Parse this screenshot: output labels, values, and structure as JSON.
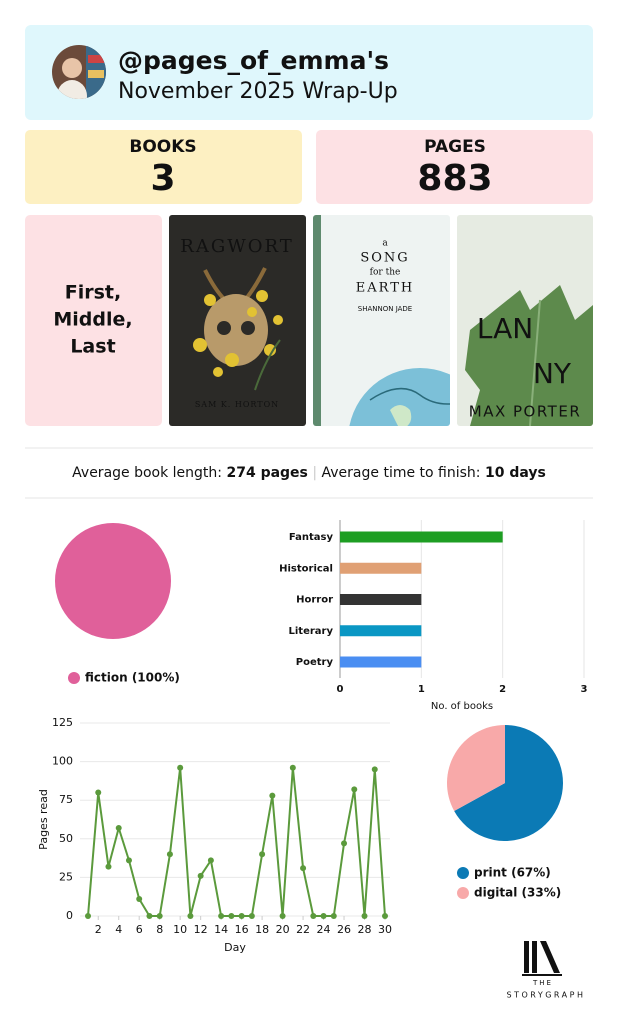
{
  "header": {
    "username": "@pages_of_emma's",
    "subtitle": "November 2025 Wrap-Up"
  },
  "stats": {
    "books_label": "BOOKS",
    "books": 3,
    "pages_label": "PAGES",
    "pages": 883
  },
  "highlight": [
    "First,",
    "Middle,",
    "Last"
  ],
  "books": [
    {
      "title": [
        "RAGWORT"
      ],
      "author": "SAM K. HORTON"
    },
    {
      "title": [
        "a",
        "SONG",
        "for the",
        "EARTH"
      ],
      "author": "SHANNON JADE"
    },
    {
      "title": [
        "LAN",
        "NY"
      ],
      "author": "MAX PORTER"
    }
  ],
  "averages": {
    "length_label": "Average book length:",
    "length": "274 pages",
    "time_label": "Average time to finish:",
    "time": "10 days"
  },
  "chart_data": [
    {
      "type": "pie",
      "labels": [
        "fiction (100%)"
      ],
      "values": [
        100
      ],
      "colors": [
        "#e0609a"
      ]
    },
    {
      "type": "bar",
      "categories": [
        "Fantasy",
        "Historical",
        "Horror",
        "Literary",
        "Poetry"
      ],
      "values": [
        2,
        1,
        1,
        1,
        1
      ],
      "colors": [
        "#1e9e23",
        "#e0a074",
        "#333333",
        "#0a97c4",
        "#4a8ef2"
      ],
      "xlabel": "No. of books",
      "xlim": [
        0,
        3
      ],
      "xticks": [
        0,
        1,
        2,
        3
      ],
      "grid": true
    },
    {
      "type": "line",
      "x": [
        1,
        2,
        3,
        4,
        5,
        6,
        7,
        8,
        9,
        10,
        11,
        12,
        13,
        14,
        15,
        16,
        17,
        18,
        19,
        20,
        21,
        22,
        23,
        24,
        25,
        26,
        27,
        28,
        29,
        30
      ],
      "series": [
        {
          "color": "#5b9a3c",
          "values": [
            0,
            80,
            32,
            57,
            36,
            11,
            0,
            0,
            40,
            96,
            0,
            26,
            36,
            0,
            0,
            0,
            0,
            40,
            78,
            0,
            96,
            31,
            0,
            0,
            0,
            47,
            82,
            0,
            95,
            0
          ]
        }
      ],
      "xlabel": "Day",
      "ylabel": "Pages read",
      "xlim": [
        1,
        30
      ],
      "xticks": [
        2,
        4,
        6,
        8,
        10,
        12,
        14,
        16,
        18,
        20,
        22,
        24,
        26,
        28,
        30
      ],
      "ylim": [
        0,
        125
      ],
      "yticks": [
        0,
        25,
        50,
        75,
        100,
        125
      ],
      "grid": true
    },
    {
      "type": "pie",
      "labels": [
        "print (67%)",
        "digital (33%)"
      ],
      "values": [
        67,
        33
      ],
      "colors": [
        "#0b7ab5",
        "#f8a9a9"
      ]
    }
  ],
  "logo": {
    "top": "THE",
    "name": "STORYGRAPH"
  }
}
